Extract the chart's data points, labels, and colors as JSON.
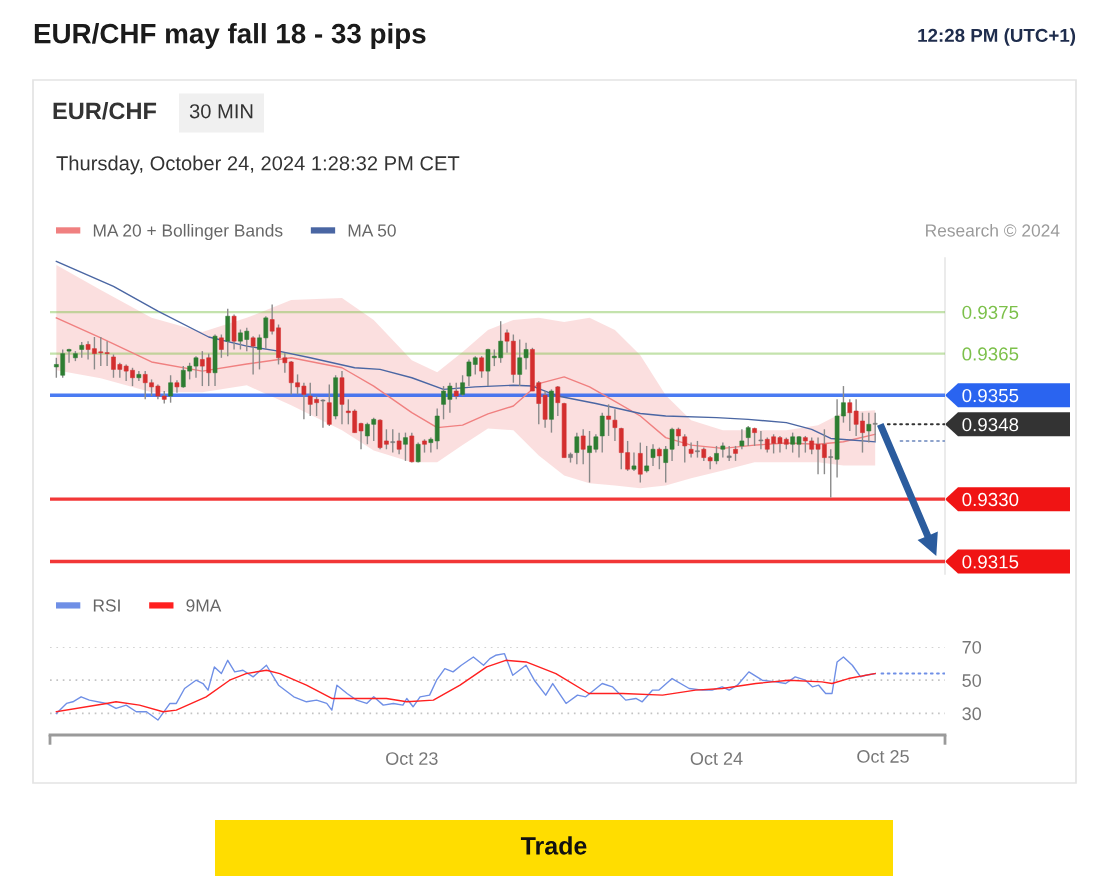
{
  "chart_data": [
    {
      "type": "candlestick",
      "title": "EUR/CHF may fall 18 - 33 pips",
      "subtitle": "EUR/CHF",
      "annotations": [
        "12:28 PM (UTC+1)",
        "30 MIN",
        "Thursday, October 24, 2024 1:28:32 PM CET",
        "Research © 2024",
        "Trade"
      ],
      "xlim": [
        "2024-10-21T19:30",
        "2024-10-24T18:00"
      ],
      "ylim": [
        0.9312,
        0.9388
      ],
      "yticks": [
        0.9315,
        {
          "value": 0.933,
          "label": "0.9330"
        },
        0.9348,
        0.9355,
        0.9365,
        0.9375
      ],
      "tick_labels": "y",
      "legend": "top left",
      "series": [
        {
          "type": "candlestick",
          "color": "#8a8a8a",
          "x": [
            "2024-10-21T20:00",
            "2024-10-21T20:30",
            "2024-10-21T21:00",
            "2024-10-21T21:30",
            "2024-10-21T22:00",
            "2024-10-21T22:30",
            "2024-10-21T23:00",
            "2024-10-21T23:30",
            "2024-10-22T00:00",
            "2024-10-22T00:30",
            "2024-10-22T01:00",
            "2024-10-22T01:30",
            "2024-10-22T02:00",
            "2024-10-22T02:30",
            "2024-10-22T03:00",
            "2024-10-22T03:30",
            "2024-10-22T04:00",
            "2024-10-22T04:30",
            "2024-10-22T05:00",
            "2024-10-22T05:30",
            "2024-10-22T06:00",
            "2024-10-22T06:30",
            "2024-10-22T07:00",
            "2024-10-22T07:30",
            "2024-10-22T08:00",
            "2024-10-22T08:30",
            "2024-10-22T09:00",
            "2024-10-22T09:30",
            "2024-10-22T10:00",
            "2024-10-22T10:30",
            "2024-10-22T11:00",
            "2024-10-22T11:30",
            "2024-10-22T12:00",
            "2024-10-22T12:30",
            "2024-10-22T13:00",
            "2024-10-22T13:30",
            "2024-10-22T14:00",
            "2024-10-22T14:30",
            "2024-10-22T15:00",
            "2024-10-22T15:30",
            "2024-10-22T16:00",
            "2024-10-22T16:30",
            "2024-10-22T17:00",
            "2024-10-22T17:30",
            "2024-10-22T18:00",
            "2024-10-22T18:30",
            "2024-10-22T19:00",
            "2024-10-22T19:30",
            "2024-10-22T20:00",
            "2024-10-22T20:30",
            "2024-10-22T21:00",
            "2024-10-22T21:30",
            "2024-10-22T22:00",
            "2024-10-22T22:30",
            "2024-10-22T23:00",
            "2024-10-22T23:30",
            "2024-10-23T00:00",
            "2024-10-23T00:30",
            "2024-10-23T01:00",
            "2024-10-23T01:30",
            "2024-10-23T02:00",
            "2024-10-23T02:30",
            "2024-10-23T03:00",
            "2024-10-23T03:30",
            "2024-10-23T04:00",
            "2024-10-23T04:30",
            "2024-10-23T05:00",
            "2024-10-23T05:30",
            "2024-10-23T06:00",
            "2024-10-23T06:30",
            "2024-10-23T07:00",
            "2024-10-23T07:30",
            "2024-10-23T08:00",
            "2024-10-23T08:30",
            "2024-10-23T09:00",
            "2024-10-23T09:30",
            "2024-10-23T10:00",
            "2024-10-23T10:30",
            "2024-10-23T11:00",
            "2024-10-23T11:30",
            "2024-10-23T12:00",
            "2024-10-23T12:30",
            "2024-10-23T13:00",
            "2024-10-23T13:30",
            "2024-10-23T14:00",
            "2024-10-23T14:30",
            "2024-10-23T15:00",
            "2024-10-23T15:30",
            "2024-10-23T16:00",
            "2024-10-23T16:30",
            "2024-10-23T17:00",
            "2024-10-23T17:30",
            "2024-10-23T18:00",
            "2024-10-23T18:30",
            "2024-10-23T19:00",
            "2024-10-23T19:30",
            "2024-10-23T20:00",
            "2024-10-23T20:30",
            "2024-10-23T21:00",
            "2024-10-23T21:30",
            "2024-10-23T22:00",
            "2024-10-23T22:30",
            "2024-10-23T23:00",
            "2024-10-23T23:30",
            "2024-10-24T00:00",
            "2024-10-24T00:30",
            "2024-10-24T01:00",
            "2024-10-24T01:30",
            "2024-10-24T02:00",
            "2024-10-24T02:30",
            "2024-10-24T03:00",
            "2024-10-24T03:30",
            "2024-10-24T04:00",
            "2024-10-24T04:30",
            "2024-10-24T05:00",
            "2024-10-24T05:30",
            "2024-10-24T06:00",
            "2024-10-24T06:30",
            "2024-10-24T07:00",
            "2024-10-24T07:30",
            "2024-10-24T08:00",
            "2024-10-24T08:30",
            "2024-10-24T09:00",
            "2024-10-24T09:30",
            "2024-10-24T10:00",
            "2024-10-24T10:30",
            "2024-10-24T11:00",
            "2024-10-24T11:30",
            "2024-10-24T12:00",
            "2024-10-24T12:30"
          ],
          "ohlc": [
            [
              0.93618,
              0.9364,
              0.93592,
              0.93624
            ],
            [
              0.93598,
              0.9366,
              0.93592,
              0.9365
            ],
            [
              0.93656,
              0.93662,
              0.93628,
              0.9366
            ],
            [
              0.9364,
              0.93656,
              0.93632,
              0.9365
            ],
            [
              0.9366,
              0.93678,
              0.9364,
              0.9367
            ],
            [
              0.93672,
              0.9368,
              0.93636,
              0.9366
            ],
            [
              0.93662,
              0.9369,
              0.93612,
              0.9365
            ],
            [
              0.93654,
              0.9369,
              0.9362,
              0.93652
            ],
            [
              0.93652,
              0.9368,
              0.9362,
              0.9365
            ],
            [
              0.93642,
              0.93648,
              0.93592,
              0.93612
            ],
            [
              0.93624,
              0.93628,
              0.93592,
              0.93612
            ],
            [
              0.9362,
              0.93624,
              0.93584,
              0.93608
            ],
            [
              0.9361,
              0.93616,
              0.93572,
              0.93592
            ],
            [
              0.93592,
              0.93608,
              0.93584,
              0.936
            ],
            [
              0.936,
              0.93608,
              0.9354,
              0.9358
            ],
            [
              0.9358,
              0.93588,
              0.93548,
              0.9357
            ],
            [
              0.93572,
              0.93576,
              0.9354,
              0.93548
            ],
            [
              0.93548,
              0.9356,
              0.9353,
              0.9354
            ],
            [
              0.93548,
              0.93598,
              0.93532,
              0.9358
            ],
            [
              0.9358,
              0.93586,
              0.93556,
              0.9357
            ],
            [
              0.9357,
              0.9362,
              0.93568,
              0.9361
            ],
            [
              0.93608,
              0.93628,
              0.93588,
              0.9362
            ],
            [
              0.9362,
              0.93644,
              0.93592,
              0.9364
            ],
            [
              0.93636,
              0.93656,
              0.93572,
              0.9362
            ],
            [
              0.9364,
              0.9365,
              0.93572,
              0.93604
            ],
            [
              0.93604,
              0.93696,
              0.93572,
              0.93692
            ],
            [
              0.93688,
              0.93696,
              0.9364,
              0.9366
            ],
            [
              0.9368,
              0.93758,
              0.93644,
              0.9374
            ],
            [
              0.9374,
              0.93744,
              0.9366,
              0.9368
            ],
            [
              0.9368,
              0.93708,
              0.9366,
              0.937
            ],
            [
              0.93684,
              0.93712,
              0.93656,
              0.93704
            ],
            [
              0.93688,
              0.93692,
              0.936,
              0.93668
            ],
            [
              0.9366,
              0.93696,
              0.93612,
              0.93688
            ],
            [
              0.93688,
              0.9374,
              0.9366,
              0.93736
            ],
            [
              0.93732,
              0.93768,
              0.93696,
              0.93704
            ],
            [
              0.93712,
              0.9372,
              0.93624,
              0.9364
            ],
            [
              0.9364,
              0.93652,
              0.93604,
              0.93628
            ],
            [
              0.9363,
              0.93632,
              0.93552,
              0.9358
            ],
            [
              0.9358,
              0.936,
              0.93552,
              0.9357
            ],
            [
              0.93572,
              0.9358,
              0.93492,
              0.93552
            ],
            [
              0.93548,
              0.9358,
              0.935,
              0.93528
            ],
            [
              0.9354,
              0.93548,
              0.935,
              0.93532
            ],
            [
              0.93538,
              0.9354,
              0.93472,
              0.93536
            ],
            [
              0.93532,
              0.93576,
              0.93476,
              0.9348
            ],
            [
              0.935,
              0.93598,
              0.93492,
              0.93592
            ],
            [
              0.93592,
              0.93608,
              0.9348,
              0.93528
            ],
            [
              0.93512,
              0.9354,
              0.9348,
              0.93508
            ],
            [
              0.93512,
              0.93516,
              0.9346,
              0.9346
            ],
            [
              0.93482,
              0.93484,
              0.9342,
              0.93464
            ],
            [
              0.93452,
              0.93484,
              0.93432,
              0.9348
            ],
            [
              0.9348,
              0.93496,
              0.9344,
              0.93492
            ],
            [
              0.9349,
              0.93492,
              0.9342,
              0.93424
            ],
            [
              0.9344,
              0.93468,
              0.9342,
              0.93432
            ],
            [
              0.93438,
              0.93468,
              0.93412,
              0.93436
            ],
            [
              0.9344,
              0.9346,
              0.93408,
              0.9342
            ],
            [
              0.93432,
              0.9346,
              0.93392,
              0.93448
            ],
            [
              0.93452,
              0.9346,
              0.93388,
              0.9339
            ],
            [
              0.9339,
              0.93436,
              0.93388,
              0.93432
            ],
            [
              0.9344,
              0.93444,
              0.93412,
              0.93432
            ],
            [
              0.93436,
              0.93448,
              0.93412,
              0.93444
            ],
            [
              0.9344,
              0.93518,
              0.9342,
              0.935
            ],
            [
              0.93528,
              0.93572,
              0.93492,
              0.9356
            ],
            [
              0.9354,
              0.9358,
              0.93508,
              0.93572
            ],
            [
              0.9356,
              0.9358,
              0.9354,
              0.93548
            ],
            [
              0.93552,
              0.93598,
              0.93548,
              0.9358
            ],
            [
              0.93596,
              0.93636,
              0.93572,
              0.9363
            ],
            [
              0.93624,
              0.93644,
              0.936,
              0.9364
            ],
            [
              0.9364,
              0.93644,
              0.93592,
              0.93608
            ],
            [
              0.93608,
              0.93662,
              0.93572,
              0.9366
            ],
            [
              0.9364,
              0.9366,
              0.9362,
              0.93644
            ],
            [
              0.9364,
              0.93728,
              0.93628,
              0.9368
            ],
            [
              0.937,
              0.93708,
              0.93652,
              0.9368
            ],
            [
              0.9368,
              0.93696,
              0.9358,
              0.936
            ],
            [
              0.936,
              0.93684,
              0.93572,
              0.9364
            ],
            [
              0.9364,
              0.93676,
              0.93612,
              0.9366
            ],
            [
              0.9366,
              0.93664,
              0.9356,
              0.9356
            ],
            [
              0.9358,
              0.93584,
              0.9348,
              0.9353
            ],
            [
              0.9355,
              0.9356,
              0.93472,
              0.93492
            ],
            [
              0.93492,
              0.93564,
              0.9346,
              0.9356
            ],
            [
              0.9357,
              0.93572,
              0.935,
              0.93532
            ],
            [
              0.9353,
              0.93532,
              0.934,
              0.934
            ],
            [
              0.93408,
              0.93412,
              0.93388,
              0.934
            ],
            [
              0.93412,
              0.9346,
              0.93384,
              0.9345
            ],
            [
              0.93452,
              0.93468,
              0.93384,
              0.9342
            ],
            [
              0.93412,
              0.93464,
              0.9334,
              0.93428
            ],
            [
              0.9342,
              0.93456,
              0.93412,
              0.9345
            ],
            [
              0.93452,
              0.93508,
              0.93412,
              0.935
            ],
            [
              0.935,
              0.93528,
              0.93452,
              0.93492
            ],
            [
              0.9349,
              0.93516,
              0.9344,
              0.93472
            ],
            [
              0.9347,
              0.93472,
              0.93372,
              0.93412
            ],
            [
              0.93412,
              0.9344,
              0.93368,
              0.93372
            ],
            [
              0.93372,
              0.93412,
              0.93368,
              0.9338
            ],
            [
              0.9341,
              0.93436,
              0.9334,
              0.9336
            ],
            [
              0.93368,
              0.93428,
              0.93364,
              0.9338
            ],
            [
              0.934,
              0.93432,
              0.9338,
              0.9342
            ],
            [
              0.9342,
              0.93424,
              0.93372,
              0.93404
            ],
            [
              0.93388,
              0.93428,
              0.9334,
              0.9342
            ],
            [
              0.9342,
              0.93472,
              0.93392,
              0.93468
            ],
            [
              0.93468,
              0.93472,
              0.93428,
              0.93452
            ],
            [
              0.9345,
              0.93456,
              0.93388,
              0.93428
            ],
            [
              0.9342,
              0.93436,
              0.934,
              0.9341
            ],
            [
              0.93416,
              0.9344,
              0.934,
              0.93414
            ],
            [
              0.9342,
              0.93424,
              0.93392,
              0.934
            ],
            [
              0.934,
              0.93404,
              0.93372,
              0.93392
            ],
            [
              0.93392,
              0.93428,
              0.93384,
              0.9341
            ],
            [
              0.9342,
              0.93436,
              0.934,
              0.93428
            ],
            [
              0.93404,
              0.93428,
              0.93392,
              0.934
            ],
            [
              0.9342,
              0.93428,
              0.93392,
              0.9341
            ],
            [
              0.93428,
              0.93468,
              0.9342,
              0.9344
            ],
            [
              0.93448,
              0.93476,
              0.93428,
              0.93472
            ],
            [
              0.9347,
              0.93472,
              0.93428,
              0.9346
            ],
            [
              0.9344,
              0.93464,
              0.9342,
              0.9344
            ],
            [
              0.93444,
              0.93448,
              0.93412,
              0.9342
            ],
            [
              0.9345,
              0.93456,
              0.9341,
              0.93434
            ],
            [
              0.93448,
              0.93452,
              0.93412,
              0.93434
            ],
            [
              0.93444,
              0.93448,
              0.9342,
              0.93432
            ],
            [
              0.93432,
              0.9346,
              0.93412,
              0.9345
            ],
            [
              0.93432,
              0.93452,
              0.934,
              0.9345
            ],
            [
              0.93448,
              0.93452,
              0.93412,
              0.9344
            ],
            [
              0.9344,
              0.93448,
              0.93408,
              0.9342
            ],
            [
              0.93432,
              0.93448,
              0.9336,
              0.9342
            ],
            [
              0.93432,
              0.93468,
              0.9336,
              0.934
            ],
            [
              0.934,
              0.9342,
              0.93304,
              0.934
            ],
            [
              0.93396,
              0.9354,
              0.93352,
              0.935
            ],
            [
              0.935,
              0.93572,
              0.93484,
              0.93532
            ],
            [
              0.93532,
              0.9354,
              0.93464,
              0.93508
            ],
            [
              0.93512,
              0.9354,
              0.93452,
              0.9348
            ],
            [
              0.93488,
              0.93508,
              0.93412,
              0.9346
            ],
            [
              0.93464,
              0.93508,
              0.93436,
              0.9348
            ],
            [
              0.9348,
              0.93508,
              0.9344,
              0.9348
            ]
          ],
          "colors": [
            "#2e7d32",
            "#2e7d32",
            "#2e7d32",
            "#2e7d32",
            "#2e7d32",
            "#d32f2f",
            "#d32f2f",
            "#d32f2f",
            "#d32f2f",
            "#d32f2f",
            "#d32f2f",
            "#d32f2f",
            "#d32f2f",
            "#2e7d32",
            "#d32f2f",
            "#d32f2f",
            "#d32f2f",
            "#d32f2f",
            "#2e7d32",
            "#d32f2f",
            "#2e7d32",
            "#2e7d32",
            "#2e7d32",
            "#d32f2f",
            "#d32f2f",
            "#2e7d32",
            "#d32f2f",
            "#2e7d32",
            "#d32f2f",
            "#2e7d32",
            "#2e7d32",
            "#d32f2f",
            "#2e7d32",
            "#2e7d32",
            "#d32f2f",
            "#d32f2f",
            "#d32f2f",
            "#d32f2f",
            "#d32f2f",
            "#d32f2f",
            "#d32f2f",
            "#d32f2f",
            "#7a7a7a",
            "#d32f2f",
            "#2e7d32",
            "#d32f2f",
            "#d32f2f",
            "#d32f2f",
            "#d32f2f",
            "#2e7d32",
            "#2e7d32",
            "#d32f2f",
            "#d32f2f",
            "#7a7a7a",
            "#d32f2f",
            "#2e7d32",
            "#d32f2f",
            "#2e7d32",
            "#d32f2f",
            "#2e7d32",
            "#2e7d32",
            "#2e7d32",
            "#2e7d32",
            "#d32f2f",
            "#2e7d32",
            "#2e7d32",
            "#2e7d32",
            "#d32f2f",
            "#2e7d32",
            "#2e7d32",
            "#2e7d32",
            "#d32f2f",
            "#d32f2f",
            "#2e7d32",
            "#2e7d32",
            "#d32f2f",
            "#d32f2f",
            "#d32f2f",
            "#2e7d32",
            "#d32f2f",
            "#d32f2f",
            "#7a7a7a",
            "#2e7d32",
            "#d32f2f",
            "#2e7d32",
            "#2e7d32",
            "#2e7d32",
            "#d32f2f",
            "#d32f2f",
            "#d32f2f",
            "#d32f2f",
            "#2e7d32",
            "#d32f2f",
            "#2e7d32",
            "#2e7d32",
            "#d32f2f",
            "#2e7d32",
            "#2e7d32",
            "#d32f2f",
            "#d32f2f",
            "#d32f2f",
            "#7a7a7a",
            "#d32f2f",
            "#d32f2f",
            "#2e7d32",
            "#2e7d32",
            "#7a7a7a",
            "#d32f2f",
            "#2e7d32",
            "#2e7d32",
            "#d32f2f",
            "#7a7a7a",
            "#d32f2f",
            "#d32f2f",
            "#d32f2f",
            "#d32f2f",
            "#2e7d32",
            "#2e7d32",
            "#d32f2f",
            "#d32f2f",
            "#d32f2f",
            "#d32f2f",
            "#7a7a7a",
            "#2e7d32",
            "#2e7d32",
            "#d32f2f",
            "#d32f2f",
            "#d32f2f",
            "#2e7d32",
            "#7a7a7a"
          ]
        },
        {
          "type": "line",
          "name": "MA 20 + Bollinger Bands",
          "color": "#f08080",
          "x": [
            "2024-10-21T20:00",
            "2024-10-21T23:30",
            "2024-10-22T03:30",
            "2024-10-22T07:30",
            "2024-10-22T11:00",
            "2024-10-22T14:30",
            "2024-10-22T18:30",
            "2024-10-22T21:00",
            "2024-10-23T00:00",
            "2024-10-23T02:00",
            "2024-10-23T04:00",
            "2024-10-23T06:00",
            "2024-10-23T08:00",
            "2024-10-23T10:00",
            "2024-10-23T12:00",
            "2024-10-23T14:00",
            "2024-10-23T16:00",
            "2024-10-23T18:00",
            "2024-10-23T20:00",
            "2024-10-23T22:00",
            "2024-10-24T00:30",
            "2024-10-24T03:00",
            "2024-10-24T05:30",
            "2024-10-24T08:00",
            "2024-10-24T10:00",
            "2024-10-24T12:30"
          ],
          "values": [
            0.93736,
            0.93688,
            0.9363,
            0.93608,
            0.93625,
            0.9364,
            0.93616,
            0.93572,
            0.93508,
            0.93472,
            0.93478,
            0.93505,
            0.93524,
            0.93578,
            0.93594,
            0.9357,
            0.93535,
            0.935,
            0.93448,
            0.9343,
            0.93422,
            0.9343,
            0.93435,
            0.93432,
            0.93438,
            0.93456
          ],
          "upper": [
            0.93863,
            0.93803,
            0.93736,
            0.93702,
            0.93736,
            0.93779,
            0.93784,
            0.93731,
            0.93634,
            0.93605,
            0.93654,
            0.93707,
            0.93731,
            0.93736,
            0.93726,
            0.93736,
            0.93707,
            0.93646,
            0.9355,
            0.9349,
            0.93466,
            0.93466,
            0.93466,
            0.93478,
            0.93509,
            0.93514
          ],
          "lower": [
            0.9361,
            0.93591,
            0.93557,
            0.93557,
            0.93574,
            0.93526,
            0.93466,
            0.93417,
            0.93389,
            0.93389,
            0.9343,
            0.9347,
            0.93466,
            0.93405,
            0.93357,
            0.93338,
            0.93333,
            0.93326,
            0.93333,
            0.9335,
            0.93369,
            0.93389,
            0.93389,
            0.93389,
            0.93381,
            0.93381
          ]
        },
        {
          "type": "line",
          "name": "MA 50",
          "color": "#4a66a3",
          "x": [
            "2024-10-21T20:00",
            "2024-10-22T00:30",
            "2024-10-22T04:00",
            "2024-10-22T08:00",
            "2024-10-22T11:00",
            "2024-10-22T13:30",
            "2024-10-22T16:00",
            "2024-10-22T19:30",
            "2024-10-22T21:30",
            "2024-10-23T00:00",
            "2024-10-23T02:30",
            "2024-10-23T05:00",
            "2024-10-23T08:00",
            "2024-10-23T09:30",
            "2024-10-23T11:30",
            "2024-10-23T14:30",
            "2024-10-23T18:00",
            "2024-10-23T20:00",
            "2024-10-24T00:00",
            "2024-10-24T02:30",
            "2024-10-24T05:30",
            "2024-10-24T07:30",
            "2024-10-24T09:00",
            "2024-10-24T12:30"
          ],
          "values": [
            0.93872,
            0.93812,
            0.93752,
            0.9369,
            0.93668,
            0.93656,
            0.9364,
            0.93616,
            0.93612,
            0.93592,
            0.93564,
            0.9357,
            0.93574,
            0.93572,
            0.93548,
            0.9353,
            0.93506,
            0.935,
            0.93496,
            0.93492,
            0.93484,
            0.93468,
            0.93446,
            0.93438
          ]
        },
        {
          "type": "line",
          "color": "#333333",
          "line_style": "dotted",
          "x": [
            "2024-10-24T13:30",
            "2024-10-24T18:00"
          ],
          "values": [
            0.9348,
            0.9348
          ]
        },
        {
          "type": "line",
          "color": "#8ea3cc",
          "line_style": "dotted",
          "x": [
            "2024-10-24T14:30",
            "2024-10-24T18:00"
          ],
          "values": [
            0.9344,
            0.9344
          ]
        }
      ],
      "ref_lines": [
        {
          "axis": "y",
          "value": 0.9375,
          "color": "#7cc04a"
        },
        {
          "axis": "y",
          "value": 0.9365,
          "color": "#7cc04a"
        },
        {
          "axis": "y",
          "value": 0.9355,
          "color": "#2a64f0"
        },
        {
          "axis": "y",
          "value": 0.933,
          "color": "#f01414"
        },
        {
          "axis": "y",
          "value": 0.9315,
          "color": "#f01414"
        }
      ]
    },
    {
      "type": "line",
      "xlim": [
        "2024-10-21T19:30",
        "2024-10-24T18:00"
      ],
      "ylim": [
        17,
        70
      ],
      "xticks": [
        {
          "value": "2024-10-21T19:30",
          "label": null
        },
        {
          "value": "2024-10-23",
          "label": "Oct 23"
        },
        {
          "value": "2024-10-24",
          "label": "Oct 24"
        },
        {
          "value": "2024-10-24T18:00",
          "label": null
        }
      ],
      "yticks": [
        30,
        50,
        70
      ],
      "grid": "y",
      "legend": "top left",
      "annotations": [
        "Oct 25"
      ],
      "series": [
        {
          "name": "RSI",
          "color": "#6f8fe6",
          "x": [
            "2024-10-21T20:00",
            "2024-10-21T20:48",
            "2024-10-21T21:18",
            "2024-10-21T21:57",
            "2024-10-21T22:36",
            "2024-10-21T23:57",
            "2024-10-22T00:42",
            "2024-10-22T01:30",
            "2024-10-22T02:18",
            "2024-10-22T03:06",
            "2024-10-22T04:00",
            "2024-10-22T04:57",
            "2024-10-22T05:27",
            "2024-10-22T06:06",
            "2024-10-22T07:00",
            "2024-10-22T07:33",
            "2024-10-22T07:57",
            "2024-10-22T08:27",
            "2024-10-22T09:00",
            "2024-10-22T09:30",
            "2024-10-22T10:03",
            "2024-10-22T10:42",
            "2024-10-22T11:30",
            "2024-10-22T12:33",
            "2024-10-22T13:30",
            "2024-10-22T14:42",
            "2024-10-22T15:42",
            "2024-10-22T16:30",
            "2024-10-22T17:18",
            "2024-10-22T17:42",
            "2024-10-22T18:06",
            "2024-10-22T18:54",
            "2024-10-22T19:39",
            "2024-10-22T20:27",
            "2024-10-22T21:00",
            "2024-10-22T21:45",
            "2024-10-22T22:33",
            "2024-10-22T23:18",
            "2024-10-22T23:36",
            "2024-10-23T00:06",
            "2024-10-23T00:39",
            "2024-10-23T01:24",
            "2024-10-23T01:57",
            "2024-10-23T02:36",
            "2024-10-23T03:15",
            "2024-10-23T03:54",
            "2024-10-23T04:51",
            "2024-10-23T05:39",
            "2024-10-23T06:09",
            "2024-10-23T06:36",
            "2024-10-23T07:18",
            "2024-10-23T07:57",
            "2024-10-23T09:00",
            "2024-10-23T09:39",
            "2024-10-23T10:33",
            "2024-10-23T11:06",
            "2024-10-23T12:09",
            "2024-10-23T13:03",
            "2024-10-23T13:42",
            "2024-10-23T15:00",
            "2024-10-23T15:48",
            "2024-10-23T16:51",
            "2024-10-23T17:39",
            "2024-10-23T18:09",
            "2024-10-23T18:57",
            "2024-10-23T19:27",
            "2024-10-23T20:30",
            "2024-10-23T21:51",
            "2024-10-23T22:54",
            "2024-10-23T23:39",
            "2024-10-24T00:27",
            "2024-10-24T01:00",
            "2024-10-24T01:39",
            "2024-10-24T02:33",
            "2024-10-24T03:36",
            "2024-10-24T04:39",
            "2024-10-24T05:27",
            "2024-10-24T06:12",
            "2024-10-24T07:00",
            "2024-10-24T07:33",
            "2024-10-24T08:03",
            "2024-10-24T08:36",
            "2024-10-24T09:06",
            "2024-10-24T09:30",
            "2024-10-24T10:00",
            "2024-10-24T10:42",
            "2024-10-24T11:21",
            "2024-10-24T11:45",
            "2024-10-24T12:30"
          ],
          "values": [
            30,
            36,
            37,
            40,
            38,
            36,
            33,
            35,
            31,
            31,
            26,
            36,
            36,
            45,
            50,
            48,
            44,
            58,
            54,
            62,
            55,
            56,
            52,
            59,
            47,
            40,
            37,
            38,
            36,
            32,
            47,
            42,
            38,
            36,
            40,
            35,
            36,
            35,
            39,
            34,
            40,
            41,
            50,
            57,
            55,
            59,
            64,
            59,
            63,
            65,
            66,
            53,
            59,
            50,
            41,
            48,
            36,
            41,
            40,
            48,
            46,
            38,
            39,
            37,
            44,
            44,
            51,
            45,
            44,
            44,
            46,
            44,
            47,
            55,
            50,
            49,
            48,
            52,
            50,
            46,
            47,
            42,
            42,
            61,
            64,
            59,
            52,
            53,
            54
          ]
        },
        {
          "name": "9MA",
          "color": "#ff2020",
          "x": [
            "2024-10-21T20:00",
            "2024-10-21T23:57",
            "2024-10-22T00:42",
            "2024-10-22T02:33",
            "2024-10-22T04:24",
            "2024-10-22T05:27",
            "2024-10-22T07:48",
            "2024-10-22T09:39",
            "2024-10-22T10:57",
            "2024-10-22T12:33",
            "2024-10-22T13:36",
            "2024-10-22T15:42",
            "2024-10-22T17:42",
            "2024-10-22T19:39",
            "2024-10-22T22:00",
            "2024-10-22T23:36",
            "2024-10-23T01:42",
            "2024-10-23T03:48",
            "2024-10-23T05:54",
            "2024-10-23T07:24",
            "2024-10-23T09:00",
            "2024-10-23T11:21",
            "2024-10-23T13:57",
            "2024-10-23T16:36",
            "2024-10-23T19:45",
            "2024-10-23T22:21",
            "2024-10-24T00:27",
            "2024-10-24T03:06",
            "2024-10-24T05:42",
            "2024-10-24T08:18",
            "2024-10-24T09:06",
            "2024-10-24T10:24",
            "2024-10-24T12:30"
          ],
          "values": [
            31,
            36,
            37,
            35,
            31,
            32,
            40,
            50,
            54,
            56,
            54,
            47,
            39,
            39,
            39,
            37,
            38,
            47,
            58,
            62,
            61,
            54,
            42,
            42,
            41,
            44,
            45,
            48,
            50,
            49,
            48,
            51,
            54
          ]
        },
        {
          "color": "#6f8fe6",
          "line_style": "dotted",
          "x": [
            "2024-10-24T13:00",
            "2024-10-24T18:00"
          ],
          "values": [
            54,
            54
          ]
        }
      ]
    }
  ]
}
